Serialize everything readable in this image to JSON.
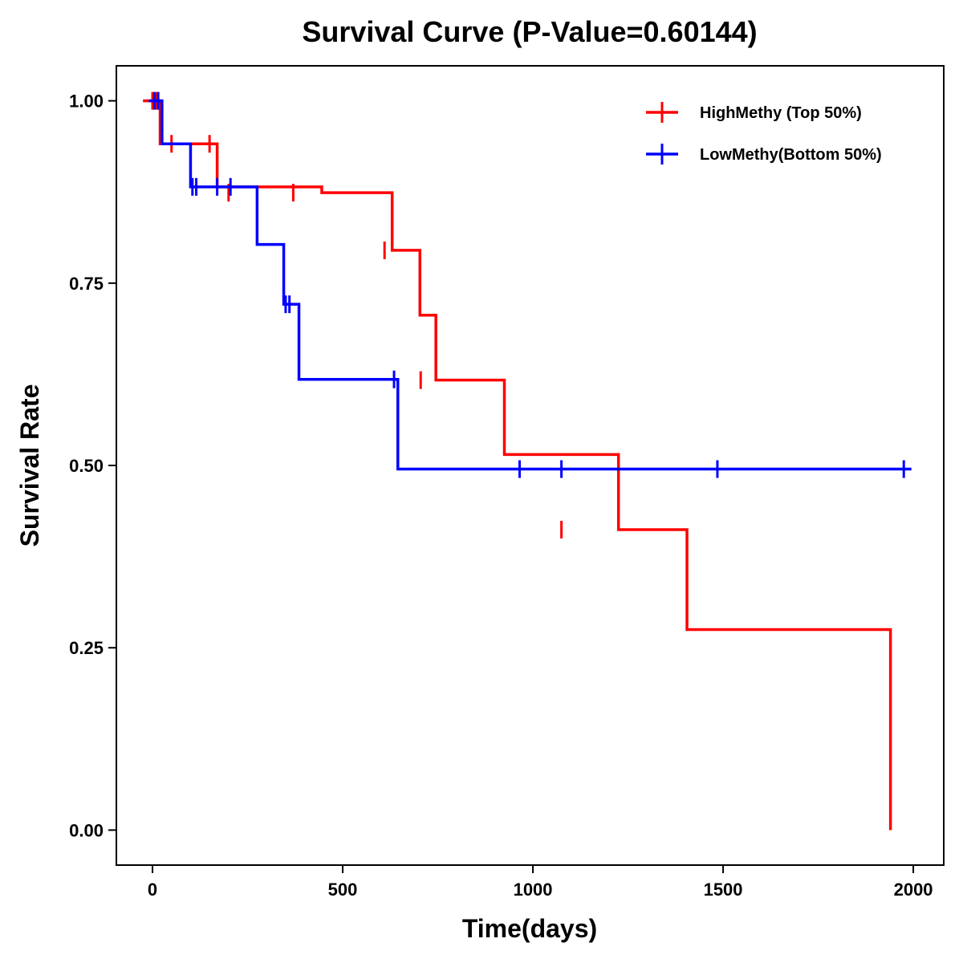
{
  "chart_data": {
    "type": "line",
    "subtype": "kaplan-meier-step",
    "title": "Survival Curve (P-Value=0.60144)",
    "xlabel": "Time(days)",
    "ylabel": "Survival Rate",
    "xlim": [
      -95,
      2080
    ],
    "ylim": [
      -0.048,
      1.048
    ],
    "x_ticks": [
      0,
      500,
      1000,
      1500,
      2000
    ],
    "x_tick_labels": [
      "0",
      "500",
      "1000",
      "1500",
      "2000"
    ],
    "y_ticks": [
      0.0,
      0.25,
      0.5,
      0.75,
      1.0
    ],
    "y_tick_labels": [
      "0.00",
      "0.25",
      "0.50",
      "0.75",
      "1.00"
    ],
    "grid": false,
    "legend_position": "top-right",
    "series": [
      {
        "name": "HighMethy (Top 50%)",
        "color": "#ff0000",
        "steps": [
          [
            -25,
            1.0
          ],
          [
            20,
            0.941
          ],
          [
            170,
            0.882
          ],
          [
            445,
            0.874
          ],
          [
            630,
            0.795
          ],
          [
            703,
            0.706
          ],
          [
            745,
            0.617
          ],
          [
            925,
            0.515
          ],
          [
            1225,
            0.412
          ],
          [
            1405,
            0.275
          ],
          [
            1940,
            0.138
          ],
          [
            1940,
            0.0
          ]
        ],
        "censor_times": [
          0,
          10,
          50,
          150,
          200,
          370,
          610,
          705,
          1075
        ],
        "censor_values": [
          1.0,
          1.0,
          0.941,
          0.941,
          0.874,
          0.874,
          0.795,
          0.617,
          0.412
        ]
      },
      {
        "name": "LowMethy(Bottom 50%)",
        "color": "#0000ff",
        "steps": [
          [
            -10,
            1.0
          ],
          [
            25,
            0.941
          ],
          [
            100,
            0.882
          ],
          [
            275,
            0.803
          ],
          [
            345,
            0.721
          ],
          [
            385,
            0.618
          ],
          [
            645,
            0.495
          ],
          [
            1995,
            0.495
          ]
        ],
        "censor_times": [
          5,
          15,
          105,
          115,
          170,
          205,
          350,
          360,
          635,
          965,
          1075,
          1485,
          1975
        ],
        "censor_values": [
          1.0,
          1.0,
          0.882,
          0.882,
          0.882,
          0.882,
          0.721,
          0.721,
          0.618,
          0.495,
          0.495,
          0.495,
          0.495
        ]
      }
    ]
  }
}
